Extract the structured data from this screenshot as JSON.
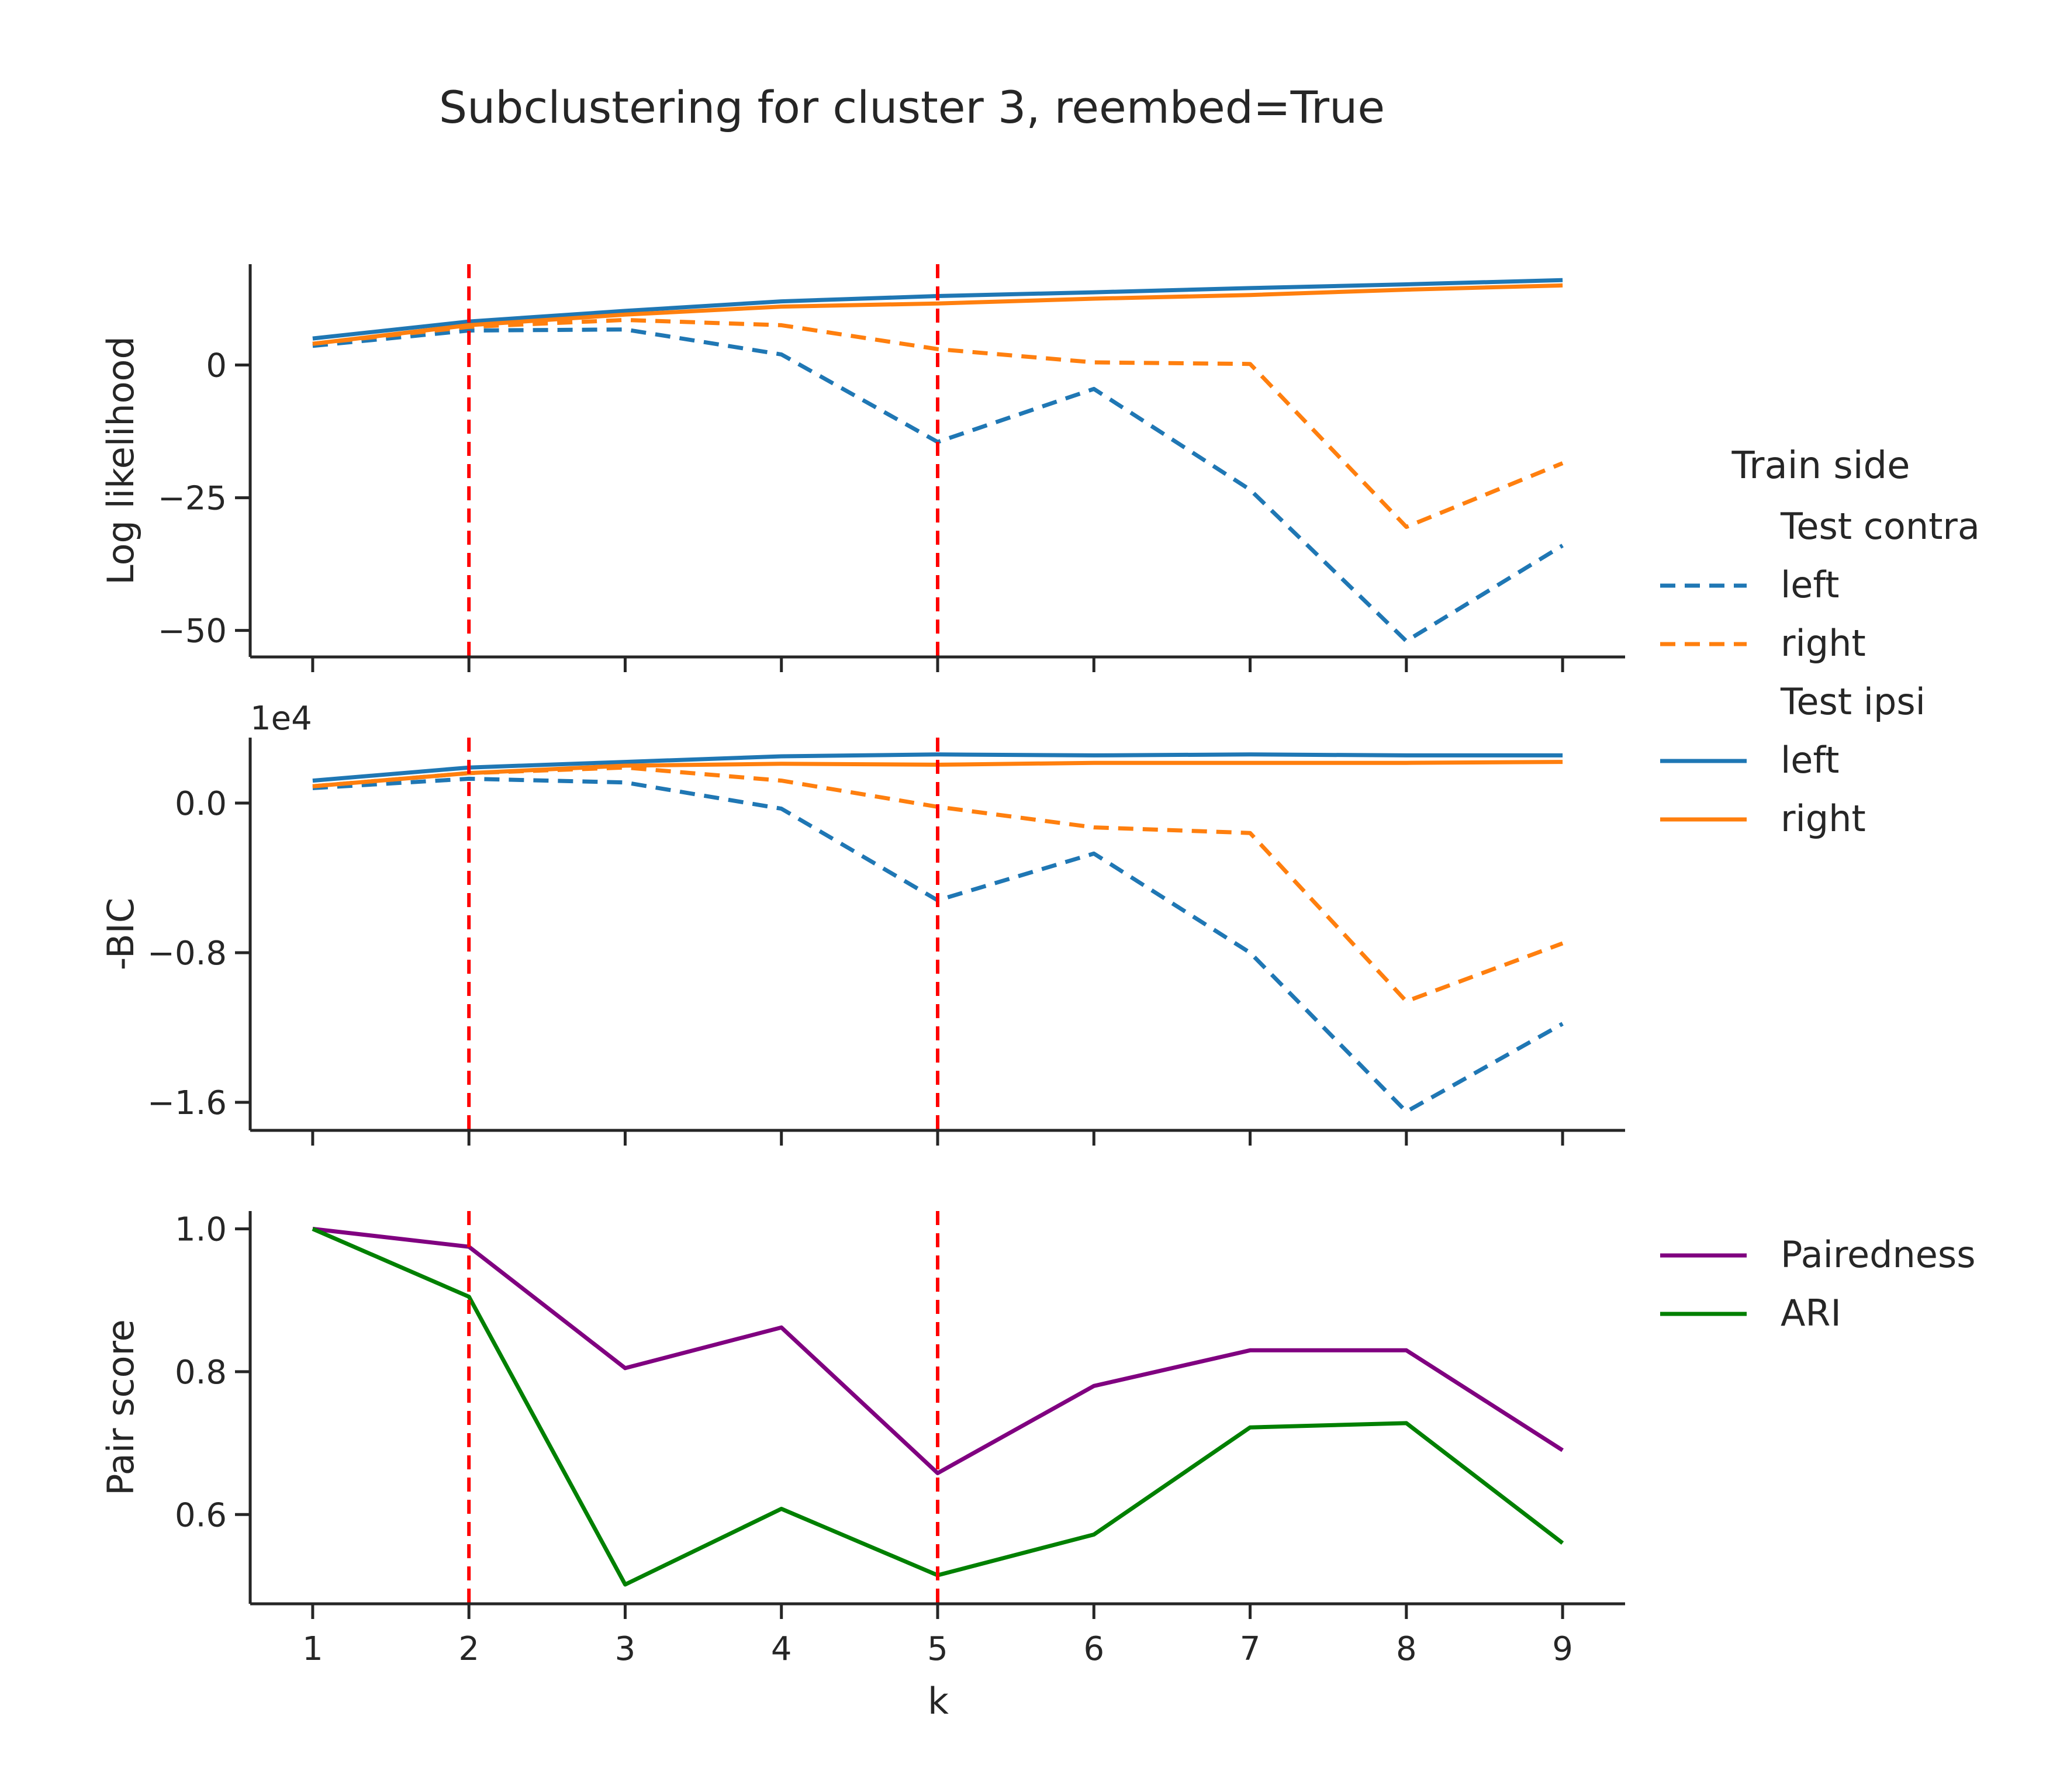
{
  "chart_data": {
    "type": "line",
    "title": "Subclustering for cluster 3, reembed=True",
    "xlabel": "k",
    "x": [
      1,
      2,
      3,
      4,
      5,
      6,
      7,
      8,
      9
    ],
    "xlim": [
      0.6,
      9.4
    ],
    "vlines": [
      2,
      5
    ],
    "vline_color": "#ff0000",
    "colors": {
      "left": "#1f77b4",
      "right": "#ff7f0e",
      "pairedness": "#800080",
      "ari": "#008000",
      "axis": "#262626"
    },
    "panels": [
      {
        "ylabel": "Log likelihood",
        "ylim": [
          -55,
          19
        ],
        "yticks": [
          0,
          -25,
          -50
        ],
        "yticklabels": [
          "0",
          "−25",
          "−50"
        ],
        "offset_text": "",
        "series": [
          {
            "group": "Test contra",
            "name": "left",
            "style": "dashed",
            "color": "#1f77b4",
            "values": [
              3.6,
              6.5,
              6.7,
              2.0,
              -14.5,
              -4.5,
              -23.5,
              -52.0,
              -34.0
            ]
          },
          {
            "group": "Test contra",
            "name": "right",
            "style": "dashed",
            "color": "#ff7f0e",
            "values": [
              4.0,
              7.2,
              8.5,
              7.5,
              3.0,
              0.5,
              0.2,
              -30.5,
              -18.5
            ]
          },
          {
            "group": "Test ipsi",
            "name": "left",
            "style": "solid",
            "color": "#1f77b4",
            "values": [
              5.0,
              8.2,
              10.2,
              12.0,
              13.0,
              13.7,
              14.5,
              15.2,
              16.0
            ]
          },
          {
            "group": "Test ipsi",
            "name": "right",
            "style": "solid",
            "color": "#ff7f0e",
            "values": [
              4.0,
              7.5,
              9.5,
              11.0,
              11.6,
              12.5,
              13.2,
              14.2,
              15.0
            ]
          }
        ]
      },
      {
        "ylabel": "-BIC",
        "ylim": [
          -17.5,
          3.5
        ],
        "yticks": [
          0.0,
          -8.0,
          -16.0
        ],
        "yticklabels": [
          "0.0",
          "−0.8",
          "−1.6"
        ],
        "offset_text": "1e4",
        "series": [
          {
            "group": "Test contra",
            "name": "left",
            "style": "dashed",
            "color": "#1f77b4",
            "values": [
              0.8,
              1.3,
              1.1,
              -0.3,
              -5.2,
              -2.7,
              -8.0,
              -16.5,
              -11.8
            ]
          },
          {
            "group": "Test contra",
            "name": "right",
            "style": "dashed",
            "color": "#ff7f0e",
            "values": [
              0.9,
              1.6,
              1.9,
              1.2,
              -0.2,
              -1.3,
              -1.6,
              -10.6,
              -7.5
            ]
          },
          {
            "group": "Test ipsi",
            "name": "left",
            "style": "solid",
            "color": "#1f77b4",
            "values": [
              1.2,
              1.9,
              2.2,
              2.5,
              2.6,
              2.55,
              2.6,
              2.55,
              2.55
            ]
          },
          {
            "group": "Test ipsi",
            "name": "right",
            "style": "solid",
            "color": "#ff7f0e",
            "values": [
              0.9,
              1.6,
              2.0,
              2.1,
              2.05,
              2.15,
              2.15,
              2.15,
              2.2
            ]
          }
        ]
      },
      {
        "ylabel": "Pair score",
        "ylim": [
          0.475,
          1.025
        ],
        "yticks": [
          1.0,
          0.8,
          0.6
        ],
        "yticklabels": [
          "1.0",
          "0.8",
          "0.6"
        ],
        "offset_text": "",
        "series": [
          {
            "name": "Pairedness",
            "style": "solid",
            "color": "#800080",
            "values": [
              1.0,
              0.975,
              0.805,
              0.862,
              0.658,
              0.78,
              0.83,
              0.83,
              0.69
            ]
          },
          {
            "name": "ARI",
            "style": "solid",
            "color": "#008000",
            "values": [
              1.0,
              0.905,
              0.502,
              0.608,
              0.515,
              0.572,
              0.722,
              0.728,
              0.56
            ]
          }
        ]
      }
    ],
    "legends": [
      {
        "title": "Train side",
        "entries": [
          {
            "label": "Test contra",
            "header": true
          },
          {
            "label": "left",
            "color": "#1f77b4",
            "style": "dashed"
          },
          {
            "label": "right",
            "color": "#ff7f0e",
            "style": "dashed"
          },
          {
            "label": "Test ipsi",
            "header": true
          },
          {
            "label": "left",
            "color": "#1f77b4",
            "style": "solid"
          },
          {
            "label": "right",
            "color": "#ff7f0e",
            "style": "solid"
          }
        ]
      },
      {
        "title": "",
        "entries": [
          {
            "label": "Pairedness",
            "color": "#800080",
            "style": "solid"
          },
          {
            "label": "ARI",
            "color": "#008000",
            "style": "solid"
          }
        ]
      }
    ]
  }
}
